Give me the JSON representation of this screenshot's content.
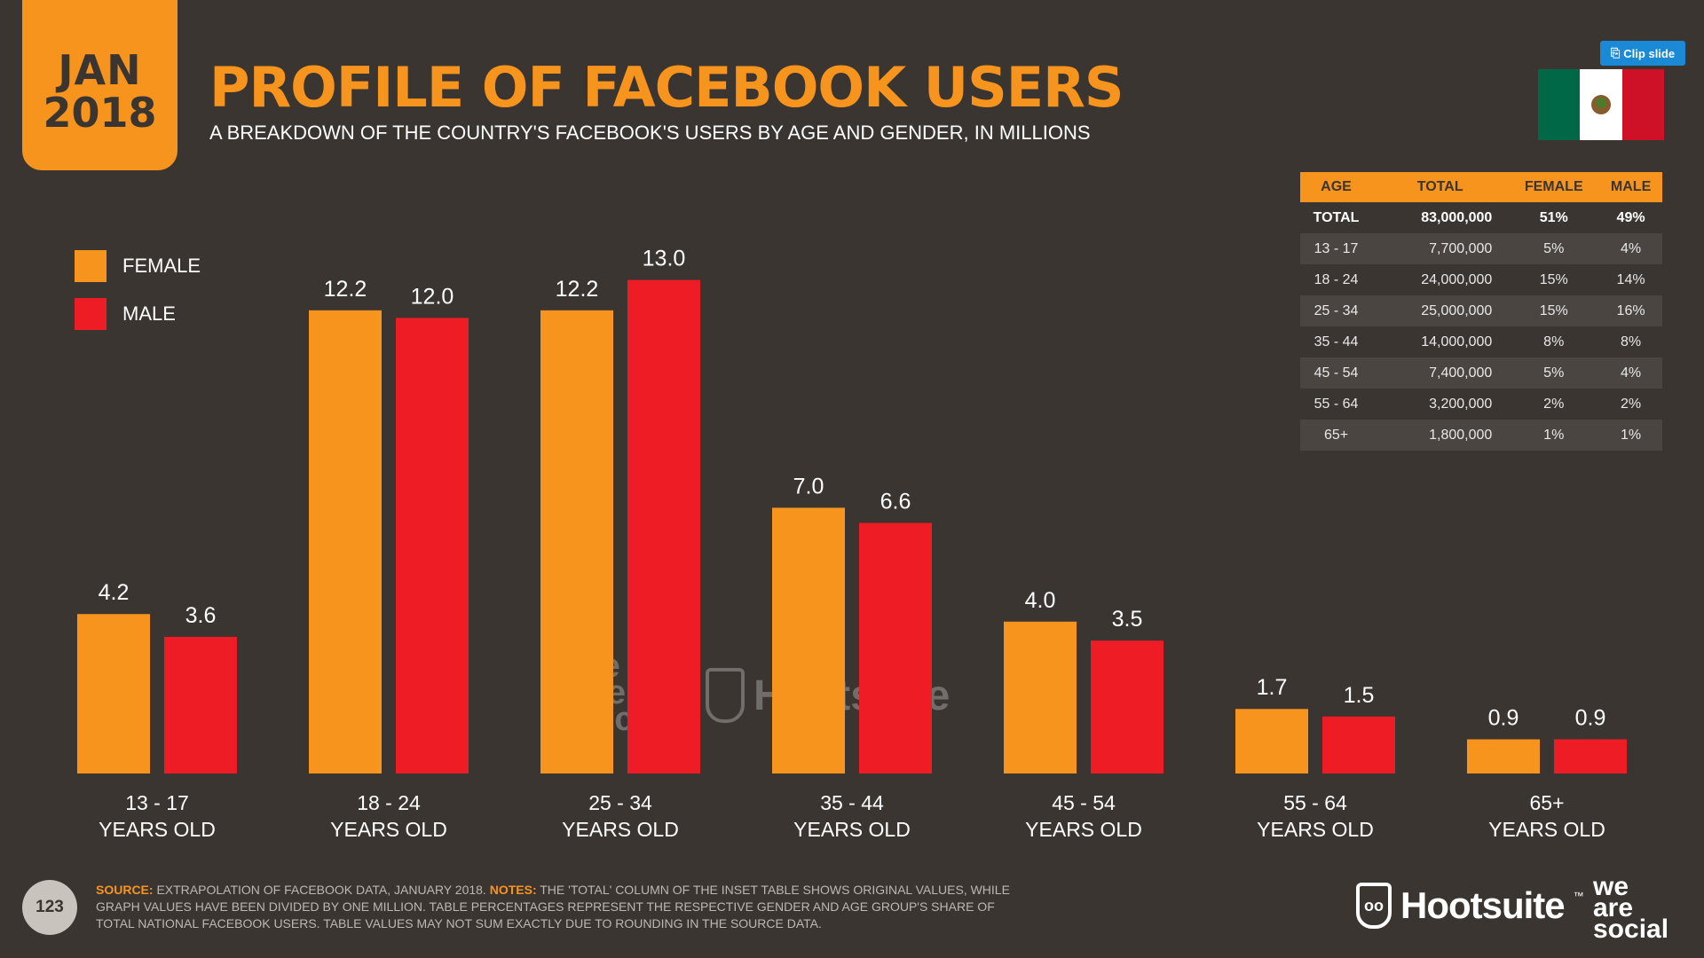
{
  "header": {
    "month": "JAN",
    "year": "2018",
    "title": "PROFILE OF FACEBOOK USERS",
    "subtitle": "A BREAKDOWN OF THE COUNTRY'S FACEBOOK'S USERS BY AGE AND GENDER, IN MILLIONS",
    "clip_label": "Clip slide"
  },
  "flag_colors": [
    "#006847",
    "#ffffff",
    "#ce1126"
  ],
  "colors": {
    "female": "#f7941d",
    "male": "#ee1c25",
    "background": "#3a3531"
  },
  "chart_data": {
    "type": "bar",
    "categories": [
      "13 - 17",
      "18 - 24",
      "25 - 34",
      "35 - 44",
      "45 - 54",
      "55 - 64",
      "65+"
    ],
    "category_sublabel": "YEARS OLD",
    "series": [
      {
        "name": "FEMALE",
        "color": "#f7941d",
        "values": [
          4.2,
          12.2,
          12.2,
          7.0,
          4.0,
          1.7,
          0.9
        ]
      },
      {
        "name": "MALE",
        "color": "#ee1c25",
        "values": [
          3.6,
          12.0,
          13.0,
          6.6,
          3.5,
          1.5,
          0.9
        ]
      }
    ],
    "value_labels": [
      [
        "4.2",
        "12.2",
        "12.2",
        "7.0",
        "4.0",
        "1.7",
        "0.9"
      ],
      [
        "3.6",
        "12.0",
        "13.0",
        "6.6",
        "3.5",
        "1.5",
        "0.9"
      ]
    ],
    "ylim": [
      0,
      13
    ],
    "legend_position": "left",
    "grid": false
  },
  "table": {
    "headers": [
      "AGE",
      "TOTAL",
      "FEMALE",
      "MALE"
    ],
    "rows": [
      [
        "TOTAL",
        "83,000,000",
        "51%",
        "49%"
      ],
      [
        "13 - 17",
        "7,700,000",
        "5%",
        "4%"
      ],
      [
        "18 - 24",
        "24,000,000",
        "15%",
        "14%"
      ],
      [
        "25 - 34",
        "25,000,000",
        "15%",
        "16%"
      ],
      [
        "35 - 44",
        "14,000,000",
        "8%",
        "8%"
      ],
      [
        "45 - 54",
        "7,400,000",
        "5%",
        "4%"
      ],
      [
        "55 - 64",
        "3,200,000",
        "2%",
        "2%"
      ],
      [
        "65+",
        "1,800,000",
        "1%",
        "1%"
      ]
    ]
  },
  "footer": {
    "page_number": "123",
    "source_label": "SOURCE:",
    "source_text": "EXTRAPOLATION OF FACEBOOK DATA, JANUARY 2018.",
    "notes_label": "NOTES:",
    "notes_text": "THE 'TOTAL' COLUMN OF THE INSET TABLE SHOWS ORIGINAL VALUES, WHILE GRAPH VALUES HAVE BEEN DIVIDED BY ONE MILLION. TABLE PERCENTAGES REPRESENT THE RESPECTIVE GENDER AND AGE GROUP'S SHARE OF TOTAL NATIONAL FACEBOOK USERS. TABLE VALUES MAY NOT SUM EXACTLY DUE TO ROUNDING IN THE SOURCE DATA."
  },
  "branding": {
    "hootsuite": "Hootsuite",
    "hootsuite_tm": "™",
    "wearesocial": [
      "we",
      "are",
      "social"
    ]
  }
}
